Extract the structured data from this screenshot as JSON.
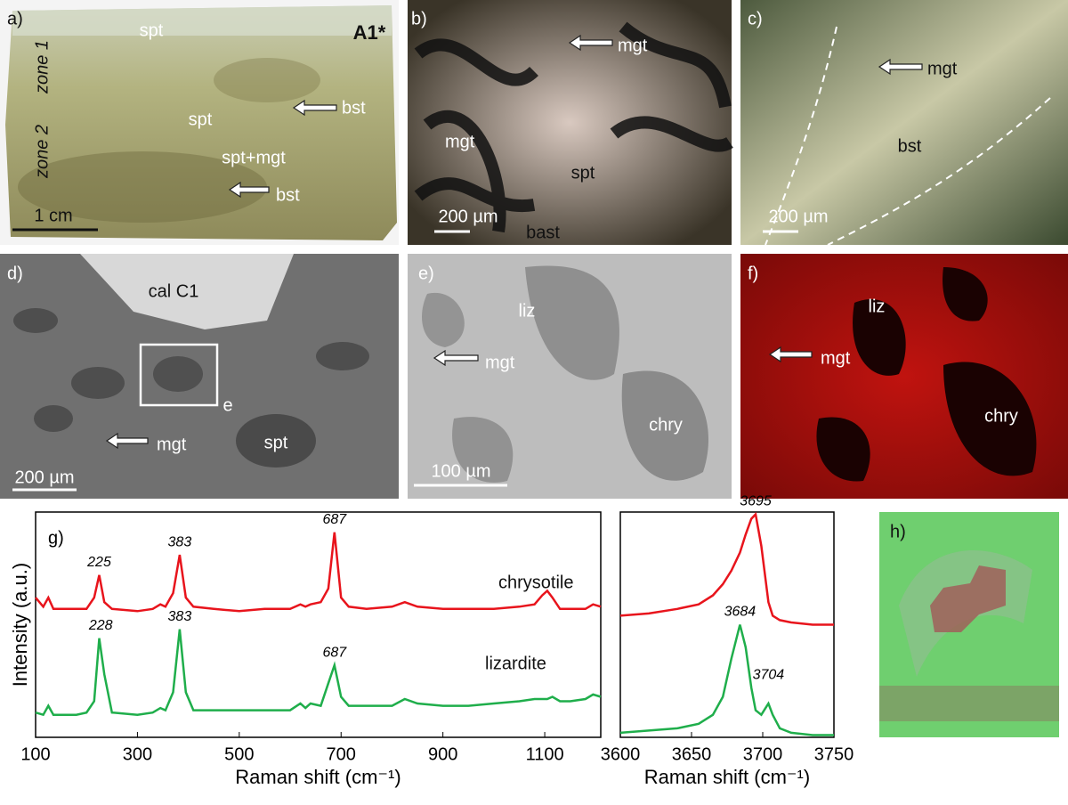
{
  "panels": {
    "a": {
      "label": "a)",
      "sample": "A1*",
      "texts": [
        "spt",
        "zone 1",
        "zone 2",
        "spt",
        "bst",
        "spt+mgt",
        "bst"
      ],
      "scale": "1 cm"
    },
    "b": {
      "label": "b)",
      "texts": [
        "mgt",
        "mgt",
        "spt",
        "bast"
      ],
      "scale": "200 µm"
    },
    "c": {
      "label": "c)",
      "texts": [
        "mgt",
        "bst"
      ],
      "scale": "200 µm"
    },
    "d": {
      "label": "d)",
      "texts": [
        "cal C1",
        "e",
        "mgt",
        "spt"
      ],
      "scale": "200 µm"
    },
    "e": {
      "label": "e)",
      "texts": [
        "liz",
        "mgt",
        "chry"
      ],
      "scale": "100 µm"
    },
    "f": {
      "label": "f)",
      "texts": [
        "liz",
        "mgt",
        "chry"
      ]
    },
    "h": {
      "label": "h)"
    }
  },
  "chart_data": [
    {
      "type": "line",
      "label": "g)",
      "y_label": "Intensity (a.u.)",
      "x_label": "Raman shift (cm⁻¹)",
      "x": [
        100,
        115,
        125,
        135,
        150,
        180,
        200,
        215,
        225,
        235,
        250,
        300,
        330,
        345,
        355,
        370,
        383,
        395,
        410,
        450,
        500,
        550,
        600,
        620,
        630,
        640,
        660,
        675,
        687,
        700,
        715,
        750,
        800,
        825,
        850,
        900,
        950,
        1000,
        1050,
        1080,
        1095,
        1105,
        1115,
        1130,
        1150,
        1180,
        1195,
        1210
      ],
      "xlim": [
        100,
        1210
      ],
      "xticks": [
        100,
        300,
        500,
        700,
        900,
        1100
      ],
      "ylim": [
        0,
        100
      ],
      "series": [
        {
          "name": "chrysotile",
          "color": "#e8141c",
          "peaks": [
            225,
            383,
            687
          ],
          "values": [
            62,
            58,
            62,
            57,
            57,
            57,
            57,
            62,
            72,
            60,
            57,
            56,
            57,
            59,
            58,
            64,
            81,
            62,
            58,
            57,
            56,
            57,
            57,
            59,
            58,
            59,
            60,
            66,
            91,
            62,
            58,
            57,
            58,
            60,
            58,
            57,
            57,
            57,
            58,
            59,
            63,
            65,
            62,
            57,
            57,
            57,
            59,
            58
          ]
        },
        {
          "name": "lizardite",
          "color": "#1fae4b",
          "peaks": [
            228,
            383,
            687
          ],
          "values": [
            11,
            10,
            14,
            10,
            10,
            10,
            11,
            16,
            44,
            28,
            11,
            10,
            11,
            13,
            12,
            20,
            48,
            20,
            12,
            12,
            12,
            12,
            12,
            15,
            13,
            15,
            14,
            24,
            32,
            18,
            14,
            14,
            14,
            17,
            15,
            14,
            14,
            15,
            16,
            17,
            17,
            17,
            18,
            16,
            16,
            17,
            19,
            18
          ]
        }
      ]
    },
    {
      "type": "line",
      "x_label": "Raman shift (cm⁻¹)",
      "x": [
        3600,
        3620,
        3640,
        3655,
        3665,
        3672,
        3678,
        3684,
        3688,
        3692,
        3695,
        3699,
        3702,
        3704,
        3707,
        3712,
        3720,
        3735,
        3750
      ],
      "xlim": [
        3600,
        3750
      ],
      "xticks": [
        3600,
        3650,
        3700,
        3750
      ],
      "ylim": [
        0,
        100
      ],
      "series": [
        {
          "color": "#e8141c",
          "peaks": [
            3695
          ],
          "values": [
            54,
            55,
            57,
            59,
            63,
            68,
            74,
            82,
            90,
            97,
            99,
            85,
            70,
            60,
            54,
            52,
            51,
            50,
            50
          ]
        },
        {
          "color": "#1fae4b",
          "peaks": [
            3684,
            3704
          ],
          "values": [
            2,
            3,
            4,
            6,
            10,
            18,
            35,
            50,
            40,
            22,
            12,
            10,
            13,
            15,
            10,
            4,
            2,
            1,
            1
          ]
        }
      ]
    }
  ]
}
